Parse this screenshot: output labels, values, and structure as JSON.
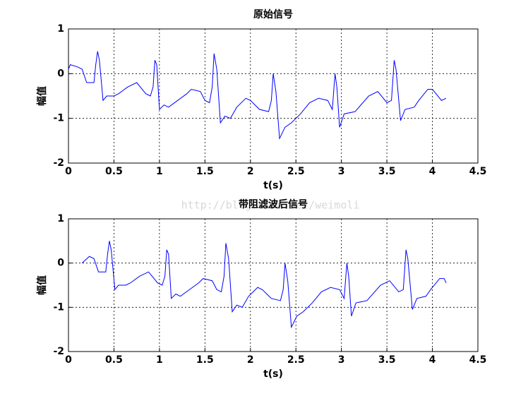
{
  "watermark": "http://blog.csdn.net/weimoli",
  "chart_data": [
    {
      "type": "line",
      "title": "原始信号",
      "xlabel": "t(s)",
      "ylabel": "幅值",
      "x": [
        0,
        0.02,
        0.1,
        0.15,
        0.2,
        0.28,
        0.3,
        0.32,
        0.34,
        0.38,
        0.42,
        0.5,
        0.55,
        0.65,
        0.75,
        0.85,
        0.9,
        0.93,
        0.95,
        0.97,
        1.0,
        1.05,
        1.1,
        1.2,
        1.3,
        1.35,
        1.45,
        1.5,
        1.55,
        1.58,
        1.6,
        1.63,
        1.67,
        1.72,
        1.78,
        1.85,
        1.95,
        2.0,
        2.1,
        2.2,
        2.23,
        2.25,
        2.28,
        2.32,
        2.38,
        2.45,
        2.55,
        2.65,
        2.75,
        2.85,
        2.9,
        2.93,
        2.95,
        2.98,
        3.03,
        3.15,
        3.3,
        3.4,
        3.5,
        3.55,
        3.58,
        3.6,
        3.65,
        3.7,
        3.8,
        3.85,
        3.95,
        4.0,
        4.1,
        4.15
      ],
      "values": [
        0.1,
        0.2,
        0.15,
        0.1,
        -0.2,
        -0.2,
        0.2,
        0.5,
        0.3,
        -0.6,
        -0.5,
        -0.5,
        -0.45,
        -0.3,
        -0.2,
        -0.45,
        -0.5,
        -0.3,
        0.3,
        0.2,
        -0.8,
        -0.7,
        -0.75,
        -0.6,
        -0.45,
        -0.35,
        -0.4,
        -0.6,
        -0.65,
        -0.3,
        0.45,
        0.1,
        -1.1,
        -0.95,
        -1.0,
        -0.75,
        -0.55,
        -0.6,
        -0.8,
        -0.85,
        -0.6,
        0,
        -0.4,
        -1.45,
        -1.2,
        -1.1,
        -0.9,
        -0.65,
        -0.55,
        -0.6,
        -0.8,
        0,
        -0.3,
        -1.2,
        -0.9,
        -0.85,
        -0.5,
        -0.4,
        -0.65,
        -0.6,
        0.3,
        0.1,
        -1.05,
        -0.8,
        -0.75,
        -0.6,
        -0.35,
        -0.35,
        -0.6,
        -0.55
      ],
      "color": "#0000ff",
      "xlim": [
        0,
        4.5
      ],
      "ylim": [
        -2,
        1
      ],
      "xticks": [
        0,
        0.5,
        1,
        1.5,
        2,
        2.5,
        3,
        3.5,
        4,
        4.5
      ],
      "yticks": [
        -2,
        -1,
        0,
        1
      ],
      "grid": true
    },
    {
      "type": "line",
      "title": "带阻滤波后信号",
      "xlabel": "t(s)",
      "ylabel": "幅值",
      "x": [
        0.15,
        0.23,
        0.28,
        0.33,
        0.41,
        0.43,
        0.45,
        0.47,
        0.51,
        0.55,
        0.63,
        0.68,
        0.78,
        0.88,
        0.98,
        1.03,
        1.06,
        1.08,
        1.1,
        1.13,
        1.18,
        1.23,
        1.33,
        1.43,
        1.48,
        1.58,
        1.63,
        1.68,
        1.71,
        1.73,
        1.76,
        1.8,
        1.85,
        1.91,
        1.98,
        2.08,
        2.13,
        2.23,
        2.33,
        2.36,
        2.38,
        2.41,
        2.45,
        2.51,
        2.58,
        2.68,
        2.78,
        2.88,
        2.98,
        3.03,
        3.06,
        3.08,
        3.11,
        3.16,
        3.28,
        3.43,
        3.53,
        3.63,
        3.68,
        3.71,
        3.73,
        3.78,
        3.83,
        3.93,
        3.98,
        4.08,
        4.13,
        4.15
      ],
      "values": [
        0,
        0.15,
        0.1,
        -0.2,
        -0.2,
        0.2,
        0.5,
        0.3,
        -0.6,
        -0.5,
        -0.5,
        -0.45,
        -0.3,
        -0.2,
        -0.45,
        -0.5,
        -0.3,
        0.3,
        0.2,
        -0.8,
        -0.7,
        -0.75,
        -0.6,
        -0.45,
        -0.35,
        -0.4,
        -0.6,
        -0.65,
        -0.3,
        0.45,
        0.1,
        -1.1,
        -0.95,
        -1.0,
        -0.75,
        -0.55,
        -0.6,
        -0.8,
        -0.85,
        -0.6,
        0,
        -0.4,
        -1.45,
        -1.2,
        -1.1,
        -0.9,
        -0.65,
        -0.55,
        -0.6,
        -0.8,
        0,
        -0.3,
        -1.2,
        -0.9,
        -0.85,
        -0.5,
        -0.4,
        -0.65,
        -0.6,
        0.3,
        0.1,
        -1.05,
        -0.8,
        -0.75,
        -0.6,
        -0.35,
        -0.35,
        -0.45
      ],
      "color": "#0000ff",
      "xlim": [
        0,
        4.5
      ],
      "ylim": [
        -2,
        1
      ],
      "xticks": [
        0,
        0.5,
        1,
        1.5,
        2,
        2.5,
        3,
        3.5,
        4,
        4.5
      ],
      "yticks": [
        -2,
        -1,
        0,
        1
      ],
      "grid": true
    }
  ]
}
